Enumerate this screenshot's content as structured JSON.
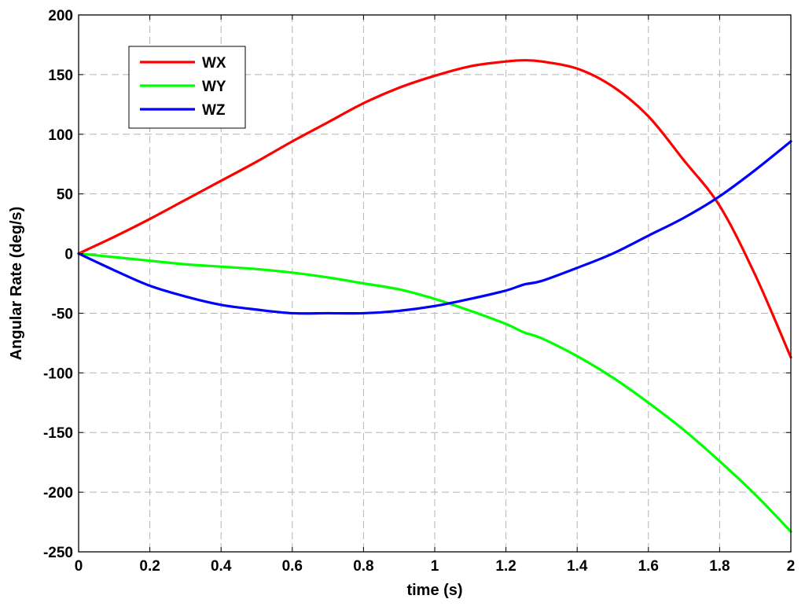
{
  "chart_data": {
    "type": "line",
    "title": "",
    "xlabel": "time (s)",
    "ylabel": "Angular Rate (deg/s)",
    "xlim": [
      0,
      2
    ],
    "ylim": [
      -250,
      200
    ],
    "xticks": [
      0,
      0.2,
      0.4,
      0.6,
      0.8,
      1,
      1.2,
      1.4,
      1.6,
      1.8,
      2
    ],
    "xtick_labels": [
      "0",
      "0.2",
      "0.4",
      "0.6",
      "0.8",
      "1",
      "1.2",
      "1.4",
      "1.6",
      "1.8",
      "2"
    ],
    "yticks": [
      -250,
      -200,
      -150,
      -100,
      -50,
      0,
      50,
      100,
      150,
      200
    ],
    "ytick_labels": [
      "-250",
      "-200",
      "-150",
      "-100",
      "-50",
      "0",
      "50",
      "100",
      "150",
      "200"
    ],
    "grid": true,
    "legend": "top-left",
    "x": [
      0,
      0.1,
      0.2,
      0.3,
      0.4,
      0.5,
      0.6,
      0.7,
      0.8,
      0.9,
      1.0,
      1.1,
      1.2,
      1.25,
      1.3,
      1.4,
      1.5,
      1.6,
      1.7,
      1.8,
      1.9,
      2.0
    ],
    "series": [
      {
        "name": "WX",
        "color": "#ff0000",
        "values": [
          0,
          14,
          29,
          45,
          61,
          77,
          94,
          110,
          126,
          139,
          149,
          157,
          161,
          162,
          161,
          155,
          140,
          115,
          78,
          40,
          -18,
          -87
        ]
      },
      {
        "name": "WY",
        "color": "#00ff00",
        "values": [
          0,
          -3,
          -6,
          -9,
          -11,
          -13,
          -16,
          -20,
          -25,
          -30,
          -38,
          -48,
          -59,
          -66,
          -71,
          -86,
          -104,
          -125,
          -148,
          -174,
          -202,
          -233
        ]
      },
      {
        "name": "WZ",
        "color": "#0000ff",
        "values": [
          0,
          -14,
          -27,
          -36,
          -43,
          -47,
          -50,
          -50,
          -50,
          -48,
          -44,
          -38,
          -31,
          -26,
          -23,
          -12,
          0,
          15,
          30,
          48,
          70,
          94
        ]
      }
    ]
  }
}
